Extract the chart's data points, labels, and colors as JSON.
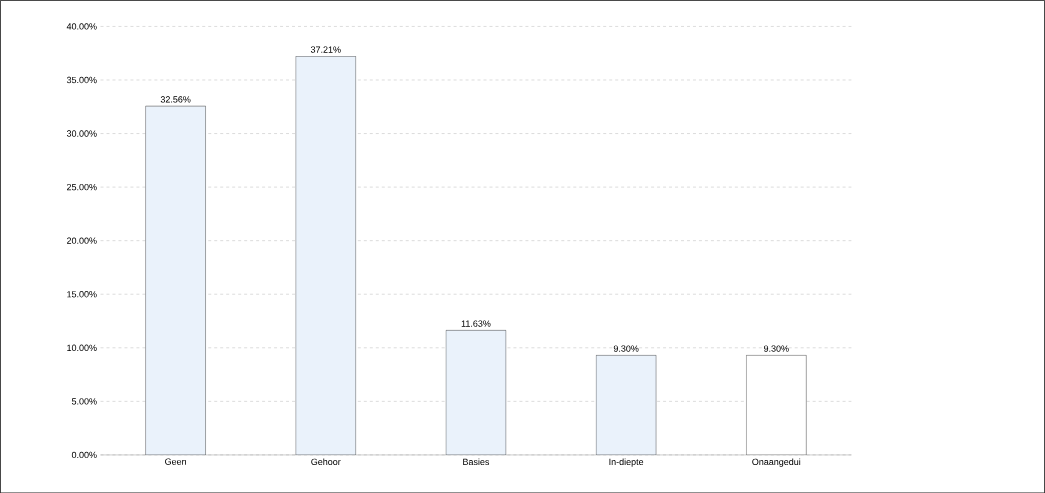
{
  "chart_data": {
    "type": "bar",
    "categories": [
      "Geen",
      "Gehoor",
      "Basies",
      "In-diepte",
      "Onaangedui"
    ],
    "values": [
      32.56,
      37.21,
      11.63,
      9.3,
      9.3
    ],
    "value_labels": [
      "32.56%",
      "37.21%",
      "11.63%",
      "9.30%",
      "9.30%"
    ],
    "colors": [
      "#eaf2fb",
      "#eaf2fb",
      "#eaf2fb",
      "#eaf2fb",
      "#ffffff"
    ],
    "ylim": [
      0,
      40
    ],
    "yticks": [
      {
        "value": 0,
        "label": "0.00%"
      },
      {
        "value": 5,
        "label": "5.00%"
      },
      {
        "value": 10,
        "label": "10.00%"
      },
      {
        "value": 15,
        "label": "15.00%"
      },
      {
        "value": 20,
        "label": "20.00%"
      },
      {
        "value": 25,
        "label": "25.00%"
      },
      {
        "value": 30,
        "label": "30.00%"
      },
      {
        "value": 35,
        "label": "35.00%"
      },
      {
        "value": 40,
        "label": "40.00%"
      }
    ],
    "grid": "y"
  }
}
